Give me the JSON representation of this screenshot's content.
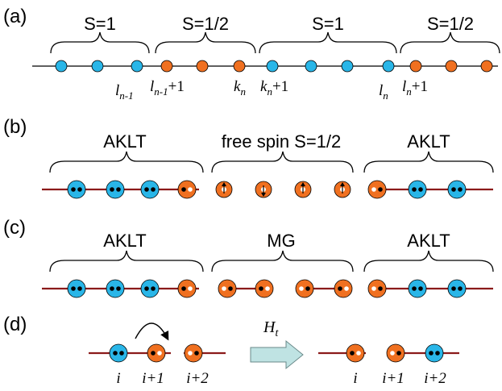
{
  "colors": {
    "spin1": "#29B6E8",
    "spin_half": "#F07020",
    "chain": "#8B1A1A",
    "arrow_fill": "#BFE3E3"
  },
  "panel_a": {
    "label": "(a)",
    "groups": [
      "S=1",
      "S=1/2",
      "S=1",
      "S=1/2"
    ],
    "index_labels": {
      "l_prev": "l",
      "l_prev_sub": "n-1",
      "l_prev_plus": "l",
      "l_prev_plus_sub": "n-1",
      "l_prev_plus_suffix": "+1",
      "k": "k",
      "k_sub": "n",
      "k_plus": "k",
      "k_plus_sub": "n",
      "k_plus_suffix": "+1",
      "l": "l",
      "l_sub": "n",
      "l_plus": "l",
      "l_plus_sub": "n",
      "l_plus_suffix": "+1"
    }
  },
  "panel_b": {
    "label": "(b)",
    "groups": [
      "AKLT",
      "free spin S=1/2",
      "AKLT"
    ]
  },
  "panel_c": {
    "label": "(c)",
    "groups": [
      "AKLT",
      "MG",
      "AKLT"
    ]
  },
  "panel_d": {
    "label": "(d)",
    "operator": "H",
    "operator_sub": "t",
    "site_labels_left": [
      "i",
      "i+1",
      "i+2"
    ],
    "site_labels_right": [
      "i",
      "i+1",
      "i+2"
    ]
  }
}
